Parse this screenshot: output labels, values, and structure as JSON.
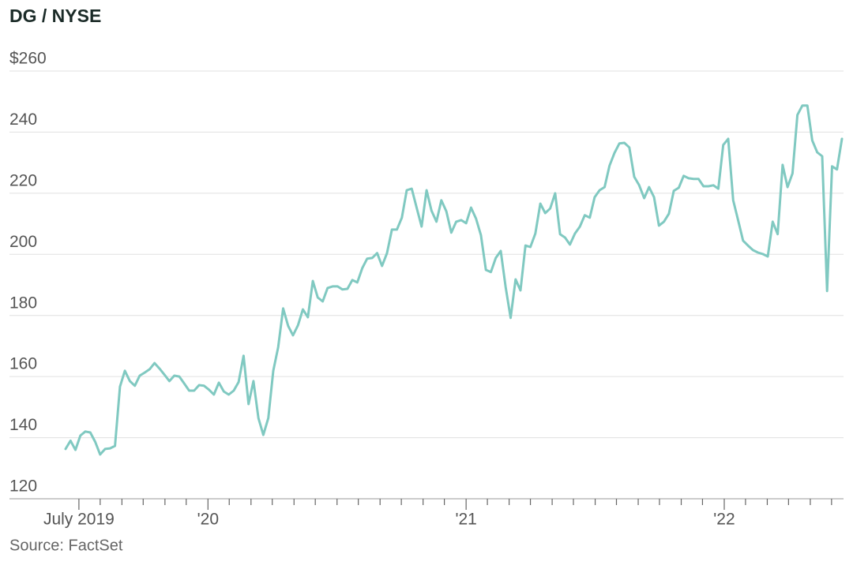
{
  "chart_data": {
    "type": "line",
    "title": "DG / NYSE",
    "source": "Source: FactSet",
    "series": [
      {
        "name": "DG",
        "color": "#80c9c1",
        "values": [
          136.3,
          139,
          136,
          140.7,
          142,
          141.7,
          138.6,
          134.5,
          136.3,
          136.5,
          137.3,
          156.7,
          161.9,
          158.5,
          157,
          160.3,
          161.3,
          162.4,
          164.4,
          162.6,
          160.6,
          158.5,
          160.3,
          160,
          157.7,
          155.4,
          155.4,
          157.2,
          157,
          155.7,
          154.1,
          158,
          155.1,
          154.1,
          155.4,
          158.2,
          166.8,
          151,
          158.5,
          146.4,
          140.9,
          146.4,
          161.9,
          169.6,
          182.3,
          176.6,
          173.5,
          176.8,
          182,
          179.4,
          191.3,
          185.9,
          184.6,
          189,
          189.5,
          189.5,
          188.5,
          188.7,
          191.6,
          190.8,
          195.5,
          198.6,
          198.8,
          200.4,
          196.2,
          200.4,
          208.1,
          208.1,
          212,
          221,
          221.5,
          215.3,
          209.1,
          221,
          214.3,
          210.7,
          217.7,
          214.1,
          207.1,
          210.7,
          211.2,
          210.2,
          215.3,
          211.7,
          206.3,
          194.9,
          194.2,
          198.8,
          201.1,
          189.3,
          179.2,
          191.8,
          188.2,
          202.9,
          202.4,
          206.8,
          216.6,
          213.5,
          215,
          220,
          206.6,
          205.5,
          203.2,
          206.8,
          209.1,
          212.8,
          212,
          218.7,
          221,
          222,
          229,
          233.2,
          236.3,
          236.5,
          235,
          225.4,
          222.6,
          218.4,
          222,
          218.7,
          209.4,
          210.7,
          213.3,
          220.8,
          221.8,
          225.7,
          224.9,
          224.7,
          224.7,
          222.3,
          222.3,
          222.6,
          221.5,
          235.8,
          237.8,
          217.7,
          211.2,
          204.5,
          202.9,
          201.4,
          200.6,
          200.1,
          199.3,
          210.7,
          206.6,
          229.3,
          222,
          226.5,
          245.6,
          248.7,
          248.7,
          237.3,
          233.4,
          232.1,
          188,
          228.8,
          227.8,
          237.8
        ]
      }
    ],
    "xlim": [
      0,
      157
    ],
    "xticks": [
      {
        "value": 2.7,
        "label": "July 2019"
      },
      {
        "value": 28.8,
        "label": "'20"
      },
      {
        "value": 81.0,
        "label": "'21"
      },
      {
        "value": 133.2,
        "label": "'22"
      }
    ],
    "xminorticks": [
      7.0,
      11.4,
      15.7,
      20.1,
      24.4,
      33.1,
      37.5,
      41.8,
      46.2,
      50.5,
      54.9,
      59.2,
      63.6,
      67.9,
      72.3,
      76.6,
      85.3,
      89.7,
      94.0,
      98.4,
      102.7,
      107.1,
      111.4,
      115.8,
      120.1,
      124.5,
      128.8,
      137.5,
      141.9,
      146.2,
      150.6,
      154.9
    ],
    "ylim": [
      120,
      260
    ],
    "yticks": [
      120,
      140,
      160,
      180,
      200,
      220,
      240,
      {
        "value": 260,
        "label": "$260"
      }
    ],
    "grid": true
  }
}
